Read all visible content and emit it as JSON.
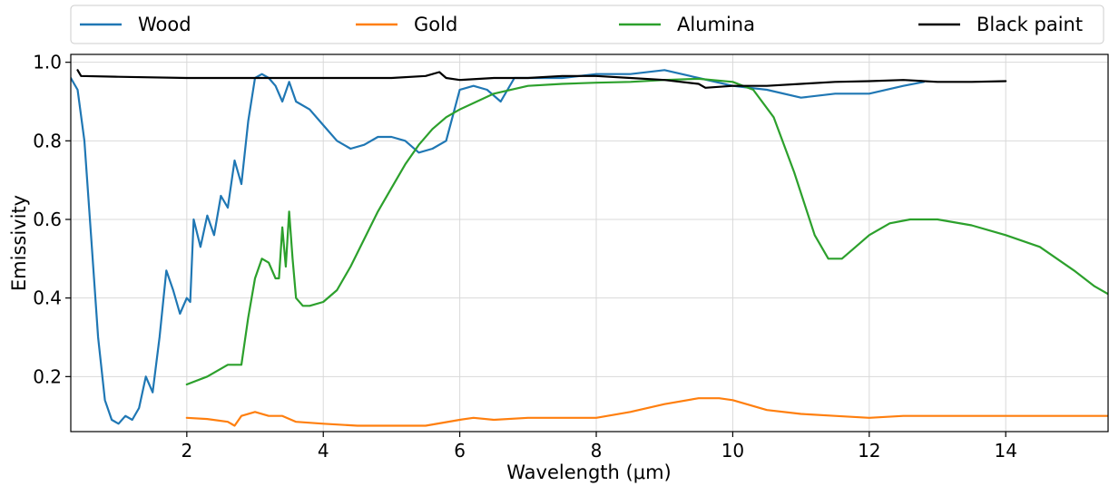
{
  "chart_data": {
    "type": "line",
    "title": "",
    "xlabel": "Wavelength (μm)",
    "ylabel": "Emissivity",
    "xlim": [
      0.3,
      15.5
    ],
    "ylim": [
      0.06,
      1.02
    ],
    "xticks": [
      2,
      4,
      6,
      8,
      10,
      12,
      14
    ],
    "yticks": [
      0.2,
      0.4,
      0.6,
      0.8,
      1.0
    ],
    "xtick_labels": [
      "2",
      "4",
      "6",
      "8",
      "10",
      "12",
      "14"
    ],
    "ytick_labels": [
      "0.2",
      "0.4",
      "0.6",
      "0.8",
      "1.0"
    ],
    "grid": true,
    "legend_position": "top",
    "series": [
      {
        "name": "Wood",
        "color": "#1f77b4",
        "points": [
          [
            0.3,
            0.96
          ],
          [
            0.4,
            0.93
          ],
          [
            0.5,
            0.8
          ],
          [
            0.6,
            0.55
          ],
          [
            0.7,
            0.3
          ],
          [
            0.8,
            0.14
          ],
          [
            0.9,
            0.09
          ],
          [
            1.0,
            0.08
          ],
          [
            1.1,
            0.1
          ],
          [
            1.2,
            0.09
          ],
          [
            1.3,
            0.12
          ],
          [
            1.4,
            0.2
          ],
          [
            1.5,
            0.16
          ],
          [
            1.6,
            0.3
          ],
          [
            1.7,
            0.47
          ],
          [
            1.8,
            0.42
          ],
          [
            1.9,
            0.36
          ],
          [
            2.0,
            0.4
          ],
          [
            2.05,
            0.39
          ],
          [
            2.1,
            0.6
          ],
          [
            2.2,
            0.53
          ],
          [
            2.3,
            0.61
          ],
          [
            2.4,
            0.56
          ],
          [
            2.5,
            0.66
          ],
          [
            2.6,
            0.63
          ],
          [
            2.7,
            0.75
          ],
          [
            2.8,
            0.69
          ],
          [
            2.9,
            0.85
          ],
          [
            3.0,
            0.96
          ],
          [
            3.1,
            0.97
          ],
          [
            3.2,
            0.96
          ],
          [
            3.3,
            0.94
          ],
          [
            3.4,
            0.9
          ],
          [
            3.5,
            0.95
          ],
          [
            3.6,
            0.9
          ],
          [
            3.8,
            0.88
          ],
          [
            4.0,
            0.84
          ],
          [
            4.2,
            0.8
          ],
          [
            4.4,
            0.78
          ],
          [
            4.6,
            0.79
          ],
          [
            4.8,
            0.81
          ],
          [
            5.0,
            0.81
          ],
          [
            5.2,
            0.8
          ],
          [
            5.4,
            0.77
          ],
          [
            5.6,
            0.78
          ],
          [
            5.8,
            0.8
          ],
          [
            6.0,
            0.93
          ],
          [
            6.2,
            0.94
          ],
          [
            6.4,
            0.93
          ],
          [
            6.6,
            0.9
          ],
          [
            6.8,
            0.96
          ],
          [
            7.0,
            0.96
          ],
          [
            7.5,
            0.96
          ],
          [
            8.0,
            0.97
          ],
          [
            8.5,
            0.97
          ],
          [
            9.0,
            0.98
          ],
          [
            9.5,
            0.96
          ],
          [
            10.0,
            0.94
          ],
          [
            10.5,
            0.93
          ],
          [
            11.0,
            0.91
          ],
          [
            11.5,
            0.92
          ],
          [
            12.0,
            0.92
          ],
          [
            12.5,
            0.94
          ],
          [
            12.8,
            0.95
          ]
        ]
      },
      {
        "name": "Gold",
        "color": "#ff7f0e",
        "points": [
          [
            2.0,
            0.095
          ],
          [
            2.3,
            0.092
          ],
          [
            2.6,
            0.085
          ],
          [
            2.7,
            0.075
          ],
          [
            2.8,
            0.1
          ],
          [
            3.0,
            0.11
          ],
          [
            3.2,
            0.1
          ],
          [
            3.4,
            0.1
          ],
          [
            3.6,
            0.085
          ],
          [
            4.0,
            0.08
          ],
          [
            4.5,
            0.075
          ],
          [
            5.0,
            0.075
          ],
          [
            5.5,
            0.075
          ],
          [
            6.0,
            0.09
          ],
          [
            6.2,
            0.095
          ],
          [
            6.5,
            0.09
          ],
          [
            7.0,
            0.095
          ],
          [
            7.5,
            0.095
          ],
          [
            8.0,
            0.095
          ],
          [
            8.5,
            0.11
          ],
          [
            9.0,
            0.13
          ],
          [
            9.5,
            0.145
          ],
          [
            9.8,
            0.145
          ],
          [
            10.0,
            0.14
          ],
          [
            10.5,
            0.115
          ],
          [
            11.0,
            0.105
          ],
          [
            11.5,
            0.1
          ],
          [
            12.0,
            0.095
          ],
          [
            12.5,
            0.1
          ],
          [
            13.0,
            0.1
          ],
          [
            13.5,
            0.1
          ],
          [
            14.0,
            0.1
          ],
          [
            14.5,
            0.1
          ],
          [
            15.0,
            0.1
          ],
          [
            15.5,
            0.1
          ]
        ]
      },
      {
        "name": "Alumina",
        "color": "#2ca02c",
        "points": [
          [
            2.0,
            0.18
          ],
          [
            2.3,
            0.2
          ],
          [
            2.6,
            0.23
          ],
          [
            2.8,
            0.23
          ],
          [
            2.9,
            0.35
          ],
          [
            3.0,
            0.45
          ],
          [
            3.1,
            0.5
          ],
          [
            3.2,
            0.49
          ],
          [
            3.3,
            0.45
          ],
          [
            3.35,
            0.45
          ],
          [
            3.4,
            0.58
          ],
          [
            3.45,
            0.48
          ],
          [
            3.5,
            0.62
          ],
          [
            3.55,
            0.5
          ],
          [
            3.6,
            0.4
          ],
          [
            3.7,
            0.38
          ],
          [
            3.8,
            0.38
          ],
          [
            4.0,
            0.39
          ],
          [
            4.2,
            0.42
          ],
          [
            4.4,
            0.48
          ],
          [
            4.6,
            0.55
          ],
          [
            4.8,
            0.62
          ],
          [
            5.0,
            0.68
          ],
          [
            5.2,
            0.74
          ],
          [
            5.4,
            0.79
          ],
          [
            5.6,
            0.83
          ],
          [
            5.8,
            0.86
          ],
          [
            6.0,
            0.88
          ],
          [
            6.5,
            0.92
          ],
          [
            7.0,
            0.94
          ],
          [
            7.5,
            0.945
          ],
          [
            8.0,
            0.948
          ],
          [
            8.5,
            0.95
          ],
          [
            9.0,
            0.955
          ],
          [
            9.5,
            0.958
          ],
          [
            10.0,
            0.95
          ],
          [
            10.3,
            0.93
          ],
          [
            10.6,
            0.86
          ],
          [
            10.9,
            0.72
          ],
          [
            11.2,
            0.56
          ],
          [
            11.4,
            0.5
          ],
          [
            11.6,
            0.5
          ],
          [
            11.8,
            0.53
          ],
          [
            12.0,
            0.56
          ],
          [
            12.3,
            0.59
          ],
          [
            12.6,
            0.6
          ],
          [
            13.0,
            0.6
          ],
          [
            13.5,
            0.585
          ],
          [
            14.0,
            0.56
          ],
          [
            14.5,
            0.53
          ],
          [
            15.0,
            0.47
          ],
          [
            15.3,
            0.43
          ],
          [
            15.5,
            0.41
          ]
        ]
      },
      {
        "name": "Black paint",
        "color": "#000000",
        "points": [
          [
            0.4,
            0.98
          ],
          [
            0.45,
            0.965
          ],
          [
            1.0,
            0.963
          ],
          [
            2.0,
            0.96
          ],
          [
            3.0,
            0.96
          ],
          [
            3.4,
            0.96
          ],
          [
            4.0,
            0.96
          ],
          [
            5.0,
            0.96
          ],
          [
            5.5,
            0.965
          ],
          [
            5.7,
            0.975
          ],
          [
            5.8,
            0.96
          ],
          [
            6.0,
            0.955
          ],
          [
            6.5,
            0.96
          ],
          [
            7.0,
            0.96
          ],
          [
            7.5,
            0.965
          ],
          [
            8.0,
            0.965
          ],
          [
            8.5,
            0.96
          ],
          [
            9.0,
            0.955
          ],
          [
            9.5,
            0.945
          ],
          [
            9.6,
            0.935
          ],
          [
            10.0,
            0.94
          ],
          [
            10.5,
            0.94
          ],
          [
            11.0,
            0.945
          ],
          [
            11.5,
            0.95
          ],
          [
            12.0,
            0.952
          ],
          [
            12.5,
            0.955
          ],
          [
            13.0,
            0.95
          ],
          [
            13.5,
            0.95
          ],
          [
            14.0,
            0.952
          ]
        ]
      }
    ]
  }
}
